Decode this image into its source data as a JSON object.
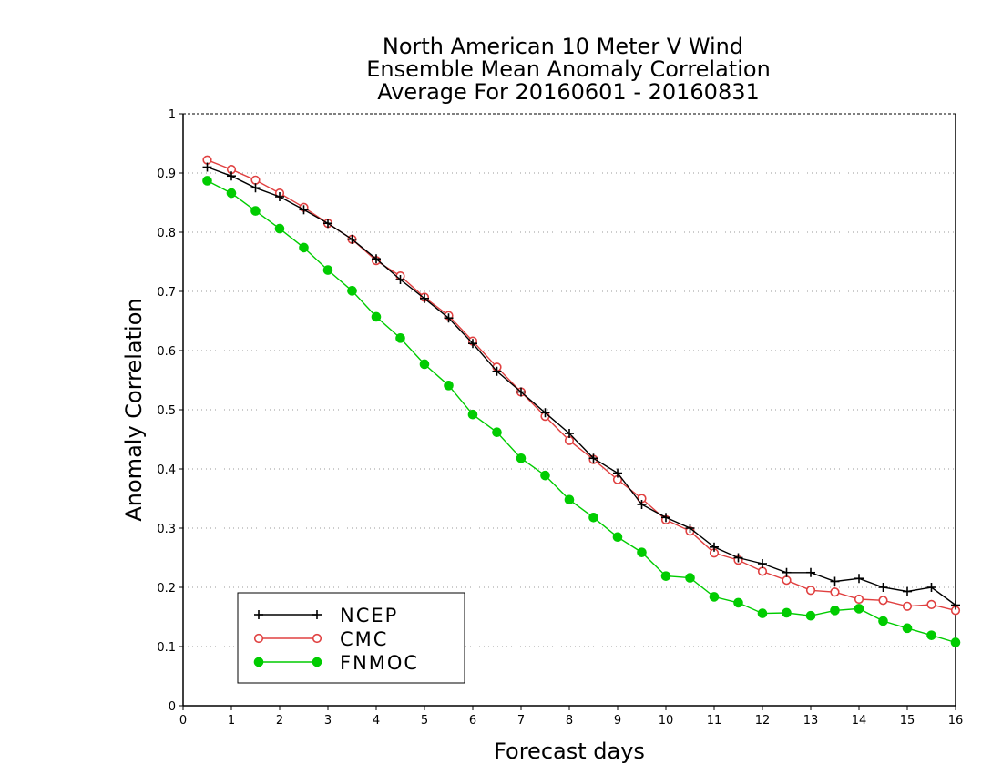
{
  "chart_data": {
    "type": "line",
    "title": [
      "North American 10 Meter V Wind",
      "Ensemble Mean Anomaly Correlation",
      "Average For 20160601 - 20160831"
    ],
    "xlabel": "Forecast days",
    "ylabel": "Anomaly Correlation",
    "xlim": [
      0,
      16
    ],
    "ylim": [
      0,
      1
    ],
    "x_ticks": [
      "0",
      "1",
      "2",
      "3",
      "4",
      "5",
      "6",
      "7",
      "8",
      "9",
      "10",
      "11",
      "12",
      "13",
      "14",
      "15",
      "16"
    ],
    "y_ticks": [
      "0",
      "0.1",
      "0.2",
      "0.3",
      "0.4",
      "0.5",
      "0.6",
      "0.7",
      "0.8",
      "0.9",
      "1"
    ],
    "grid": true,
    "legend_position": "bottom-left",
    "x": [
      0.5,
      1,
      1.5,
      2,
      2.5,
      3,
      3.5,
      4,
      4.5,
      5,
      5.5,
      6,
      6.5,
      7,
      7.5,
      8,
      8.5,
      9,
      9.5,
      10,
      10.5,
      11,
      11.5,
      12,
      12.5,
      13,
      13.5,
      14,
      14.5,
      15,
      15.5,
      16
    ],
    "series": [
      {
        "name": "NCEP",
        "color": "#000000",
        "marker": "plus",
        "values": [
          0.91,
          0.895,
          0.875,
          0.86,
          0.838,
          0.815,
          0.788,
          0.755,
          0.72,
          0.688,
          0.655,
          0.612,
          0.565,
          0.53,
          0.495,
          0.46,
          0.418,
          0.393,
          0.34,
          0.318,
          0.3,
          0.268,
          0.25,
          0.24,
          0.225,
          0.225,
          0.21,
          0.215,
          0.2,
          0.193,
          0.2,
          0.17
        ]
      },
      {
        "name": "CMC",
        "color": "#e04040",
        "marker": "open-circle",
        "values": [
          0.922,
          0.906,
          0.888,
          0.866,
          0.842,
          0.815,
          0.788,
          0.752,
          0.726,
          0.69,
          0.659,
          0.616,
          0.572,
          0.53,
          0.489,
          0.448,
          0.416,
          0.382,
          0.35,
          0.314,
          0.295,
          0.258,
          0.246,
          0.227,
          0.212,
          0.195,
          0.192,
          0.18,
          0.178,
          0.168,
          0.171,
          0.161
        ]
      },
      {
        "name": "FNMOC",
        "color": "#00cc00",
        "marker": "filled-circle",
        "values": [
          0.887,
          0.866,
          0.836,
          0.806,
          0.774,
          0.736,
          0.701,
          0.657,
          0.621,
          0.577,
          0.541,
          0.492,
          0.462,
          0.418,
          0.389,
          0.348,
          0.318,
          0.285,
          0.259,
          0.219,
          0.216,
          0.184,
          0.174,
          0.156,
          0.157,
          0.152,
          0.161,
          0.164,
          0.143,
          0.131,
          0.119,
          0.107
        ]
      }
    ]
  }
}
